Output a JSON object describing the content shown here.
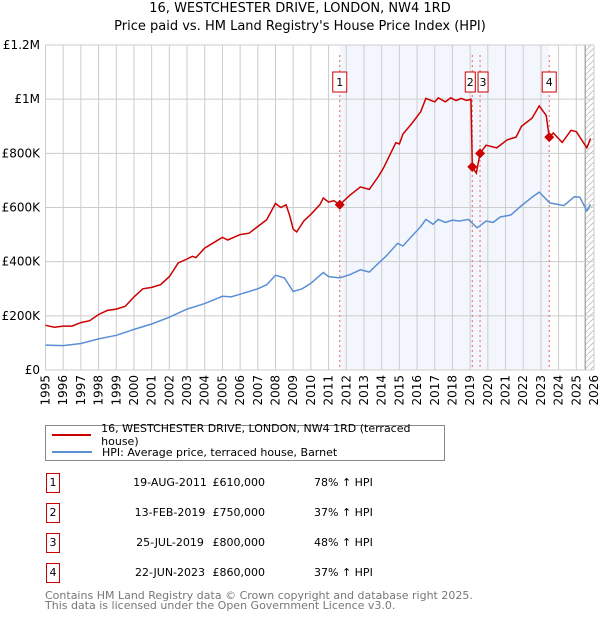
{
  "chart_data": {
    "type": "line",
    "title": "16, WESTCHESTER DRIVE, LONDON, NW4 1RD",
    "subtitle": "Price paid vs. HM Land Registry's House Price Index (HPI)",
    "xlim": [
      1995,
      2026
    ],
    "ylim": [
      0,
      1200000
    ],
    "x_ticks": [
      "1995",
      "1996",
      "1997",
      "1998",
      "1999",
      "2000",
      "2001",
      "2002",
      "2003",
      "2004",
      "2005",
      "2006",
      "2007",
      "2008",
      "2009",
      "2010",
      "2011",
      "2012",
      "2013",
      "2014",
      "2015",
      "2016",
      "2017",
      "2018",
      "2019",
      "2020",
      "2021",
      "2022",
      "2023",
      "2024",
      "2025",
      "2026"
    ],
    "y_ticks": [
      {
        "v": 0,
        "label": "£0"
      },
      {
        "v": 200000,
        "label": "£200K"
      },
      {
        "v": 400000,
        "label": "£400K"
      },
      {
        "v": 600000,
        "label": "£600K"
      },
      {
        "v": 800000,
        "label": "£800K"
      },
      {
        "v": 1000000,
        "label": "£1M"
      },
      {
        "v": 1200000,
        "label": "£1.2M"
      }
    ],
    "grid": true,
    "shaded_range": [
      2011.63,
      2023.47
    ],
    "forecast_hatch_from": 2025.5,
    "series": [
      {
        "name": "16, WESTCHESTER DRIVE, LONDON, NW4 1RD (terraced house)",
        "color": "#cc0000",
        "points": [
          [
            1995,
            165000
          ],
          [
            1995.5,
            158000
          ],
          [
            1996,
            162000
          ],
          [
            1996.5,
            162000
          ],
          [
            1997,
            175000
          ],
          [
            1997.5,
            182000
          ],
          [
            1998,
            205000
          ],
          [
            1998.5,
            220000
          ],
          [
            1999,
            225000
          ],
          [
            1999.5,
            235000
          ],
          [
            2000,
            270000
          ],
          [
            2000.5,
            300000
          ],
          [
            2001,
            305000
          ],
          [
            2001.5,
            315000
          ],
          [
            2002,
            345000
          ],
          [
            2002.5,
            395000
          ],
          [
            2003,
            410000
          ],
          [
            2003.3,
            420000
          ],
          [
            2003.5,
            415000
          ],
          [
            2004,
            450000
          ],
          [
            2004.5,
            470000
          ],
          [
            2005,
            490000
          ],
          [
            2005.3,
            480000
          ],
          [
            2006,
            500000
          ],
          [
            2006.5,
            505000
          ],
          [
            2007,
            530000
          ],
          [
            2007.5,
            555000
          ],
          [
            2008,
            615000
          ],
          [
            2008.3,
            600000
          ],
          [
            2008.6,
            610000
          ],
          [
            2008.8,
            570000
          ],
          [
            2009,
            520000
          ],
          [
            2009.2,
            510000
          ],
          [
            2009.6,
            550000
          ],
          [
            2010,
            575000
          ],
          [
            2010.5,
            610000
          ],
          [
            2010.7,
            635000
          ],
          [
            2011,
            620000
          ],
          [
            2011.3,
            625000
          ],
          [
            2011.63,
            610000
          ],
          [
            2012.2,
            645000
          ],
          [
            2012.8,
            676000
          ],
          [
            2013.3,
            667000
          ],
          [
            2013.8,
            713000
          ],
          [
            2014.1,
            745000
          ],
          [
            2014.8,
            839000
          ],
          [
            2015.0,
            835000
          ],
          [
            2015.2,
            871000
          ],
          [
            2015.7,
            910000
          ],
          [
            2016.2,
            953000
          ],
          [
            2016.5,
            1003000
          ],
          [
            2017.0,
            990000
          ],
          [
            2017.2,
            1005000
          ],
          [
            2017.6,
            990000
          ],
          [
            2017.9,
            1005000
          ],
          [
            2018.2,
            995000
          ],
          [
            2018.5,
            1003000
          ],
          [
            2018.8,
            995000
          ],
          [
            2019.05,
            1000000
          ],
          [
            2019.12,
            750000
          ],
          [
            2019.35,
            727000
          ],
          [
            2019.56,
            800000
          ],
          [
            2019.9,
            830000
          ],
          [
            2020.5,
            820000
          ],
          [
            2021.1,
            850000
          ],
          [
            2021.6,
            860000
          ],
          [
            2021.9,
            900000
          ],
          [
            2022.5,
            930000
          ],
          [
            2022.9,
            975000
          ],
          [
            2023.3,
            940000
          ],
          [
            2023.47,
            860000
          ],
          [
            2023.7,
            875000
          ],
          [
            2024.2,
            840000
          ],
          [
            2024.7,
            885000
          ],
          [
            2025.0,
            880000
          ],
          [
            2025.6,
            820000
          ],
          [
            2025.8,
            855000
          ]
        ]
      },
      {
        "name": "HPI: Average price, terraced house, Barnet",
        "color": "#5b8fd4",
        "points": [
          [
            1995,
            92000
          ],
          [
            1996,
            90000
          ],
          [
            1997,
            98000
          ],
          [
            1998,
            115000
          ],
          [
            1999,
            128000
          ],
          [
            2000,
            150000
          ],
          [
            2001,
            170000
          ],
          [
            2002,
            195000
          ],
          [
            2003,
            225000
          ],
          [
            2004,
            245000
          ],
          [
            2005,
            272000
          ],
          [
            2005.5,
            270000
          ],
          [
            2006,
            280000
          ],
          [
            2007,
            300000
          ],
          [
            2007.5,
            315000
          ],
          [
            2008,
            350000
          ],
          [
            2008.5,
            340000
          ],
          [
            2009,
            290000
          ],
          [
            2009.5,
            300000
          ],
          [
            2010,
            320000
          ],
          [
            2010.7,
            360000
          ],
          [
            2011,
            345000
          ],
          [
            2011.63,
            340000
          ],
          [
            2012.2,
            352000
          ],
          [
            2012.8,
            370000
          ],
          [
            2013.3,
            362000
          ],
          [
            2013.8,
            393000
          ],
          [
            2014.3,
            424000
          ],
          [
            2014.9,
            468000
          ],
          [
            2015.2,
            458000
          ],
          [
            2015.7,
            494000
          ],
          [
            2016.2,
            529000
          ],
          [
            2016.5,
            556000
          ],
          [
            2016.9,
            538000
          ],
          [
            2017.2,
            556000
          ],
          [
            2017.6,
            545000
          ],
          [
            2018.0,
            553000
          ],
          [
            2018.4,
            550000
          ],
          [
            2018.9,
            556000
          ],
          [
            2019.4,
            525000
          ],
          [
            2019.9,
            550000
          ],
          [
            2020.3,
            545000
          ],
          [
            2020.7,
            565000
          ],
          [
            2021.3,
            572000
          ],
          [
            2021.9,
            607000
          ],
          [
            2022.5,
            638000
          ],
          [
            2022.9,
            657000
          ],
          [
            2023.5,
            617000
          ],
          [
            2024.3,
            607000
          ],
          [
            2024.9,
            640000
          ],
          [
            2025.2,
            638000
          ],
          [
            2025.6,
            588000
          ],
          [
            2025.8,
            612000
          ]
        ]
      }
    ],
    "sales": [
      {
        "id": "1",
        "year": 2011.63,
        "price": 610000,
        "date": "19-AUG-2011",
        "price_label": "£610,000",
        "hpi": "78% ↑ HPI"
      },
      {
        "id": "2",
        "year": 2019.12,
        "price": 750000,
        "date": "13-FEB-2019",
        "price_label": "£750,000",
        "hpi": "37% ↑ HPI"
      },
      {
        "id": "3",
        "year": 2019.56,
        "price": 800000,
        "date": "25-JUL-2019",
        "price_label": "£800,000",
        "hpi": "48% ↑ HPI"
      },
      {
        "id": "4",
        "year": 2023.47,
        "price": 860000,
        "date": "22-JUN-2023",
        "price_label": "£860,000",
        "hpi": "37% ↑ HPI"
      }
    ]
  },
  "legend": {
    "property": "16, WESTCHESTER DRIVE, LONDON, NW4 1RD (terraced house)",
    "hpi": "HPI: Average price, terraced house, Barnet"
  },
  "footer": {
    "line1": "Contains HM Land Registry data © Crown copyright and database right 2025.",
    "line2": "This data is licensed under the Open Government Licence v3.0."
  }
}
